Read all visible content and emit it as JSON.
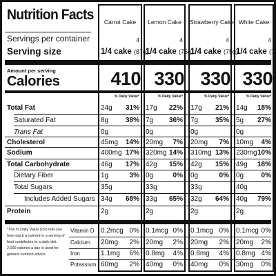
{
  "title": "Nutrition Facts",
  "servings_label": "Servings per container",
  "serving_size_label": "Serving size",
  "amount_per_serving": "Amount per serving",
  "calories_label": "Calories",
  "daily_value_header": "% Daily Value*",
  "products": [
    {
      "name": "Carrot Cake",
      "servings": "4",
      "serving_size": "1/4 cake",
      "grams": "(87g)",
      "calories": "410"
    },
    {
      "name": "Lemon Cake",
      "servings": "4",
      "serving_size": "1/4 cake",
      "grams": "(75g)",
      "calories": "330"
    },
    {
      "name": "Strawberry Cake",
      "servings": "4",
      "serving_size": "1/4 cake",
      "grams": "(75g)",
      "calories": "330"
    },
    {
      "name": "White Cake",
      "servings": "4",
      "serving_size": "1/4 cake",
      "grams": "(77g)",
      "calories": "330"
    }
  ],
  "nutrients": [
    {
      "label": "Total Fat",
      "values": [
        [
          "24g",
          "31%"
        ],
        [
          "17g",
          "22%"
        ],
        [
          "17g",
          "21%"
        ],
        [
          "14g",
          "18%"
        ]
      ]
    },
    {
      "label": "Saturated Fat",
      "values": [
        [
          "8g",
          "38%"
        ],
        [
          "7g",
          "36%"
        ],
        [
          "7g",
          "35%"
        ],
        [
          "5g",
          "27%"
        ]
      ]
    },
    {
      "label": "Trans Fat",
      "values": [
        [
          "0g",
          ""
        ],
        [
          "0g",
          ""
        ],
        [
          "0g",
          ""
        ],
        [
          "0g",
          ""
        ]
      ]
    },
    {
      "label": "Cholesterol",
      "values": [
        [
          "45mg",
          "14%"
        ],
        [
          "20mg",
          "7%"
        ],
        [
          "20mg",
          "7%"
        ],
        [
          "10mg",
          "4%"
        ]
      ]
    },
    {
      "label": "Sodium",
      "values": [
        [
          "400mg",
          "17%"
        ],
        [
          "320mg",
          "14%"
        ],
        [
          "310mg",
          "13%"
        ],
        [
          "230mg",
          "10%"
        ]
      ]
    },
    {
      "label": "Total Carbohydrate",
      "values": [
        [
          "46g",
          "17%"
        ],
        [
          "42g",
          "15%"
        ],
        [
          "42g",
          "15%"
        ],
        [
          "49g",
          "18%"
        ]
      ]
    },
    {
      "label": "Dietary Fiber",
      "values": [
        [
          "1g",
          "3%"
        ],
        [
          "0g",
          "0%"
        ],
        [
          "0g",
          "0%"
        ],
        [
          "0g",
          "0%"
        ]
      ]
    },
    {
      "label": "Total Sugars",
      "values": [
        [
          "35g",
          ""
        ],
        [
          "33g",
          ""
        ],
        [
          "33g",
          ""
        ],
        [
          "40g",
          ""
        ]
      ]
    },
    {
      "label": "Includes Added Sugars",
      "values": [
        [
          "34g",
          "68%"
        ],
        [
          "33g",
          "65%"
        ],
        [
          "32g",
          "64%"
        ],
        [
          "40g",
          "79%"
        ]
      ]
    },
    {
      "label": "Protein",
      "values": [
        [
          "2g",
          ""
        ],
        [
          "2g",
          ""
        ],
        [
          "2g",
          ""
        ],
        [
          "2g",
          ""
        ]
      ]
    }
  ],
  "footnote": "*The % Daily Value (DV) tells you how much a nutrient in a serving of food contributes to a daily diet. 2,000 calories a day is used for general nutrition advice.",
  "vitamins": [
    {
      "label": "Vitamin D",
      "values": [
        [
          "0.2mcg",
          "0%"
        ],
        [
          "0.1mcg",
          "0%"
        ],
        [
          "0.1mcg",
          "0%"
        ],
        [
          "0.1mcg",
          "0%"
        ]
      ]
    },
    {
      "label": "Calcium",
      "values": [
        [
          "20mg",
          "2%"
        ],
        [
          "20mg",
          "2%"
        ],
        [
          "20mg",
          "2%"
        ],
        [
          "20mg",
          "2%"
        ]
      ]
    },
    {
      "label": "Iron",
      "values": [
        [
          "1.1mg",
          "6%"
        ],
        [
          "0.8mg",
          "4%"
        ],
        [
          "0.8mg",
          "4%"
        ],
        [
          "0.8mg",
          "4%"
        ]
      ]
    },
    {
      "label": "Potassium",
      "values": [
        [
          "60mg",
          "2%"
        ],
        [
          "40mg",
          "0%"
        ],
        [
          "40mg",
          "0%"
        ],
        [
          "30mg",
          "0%"
        ]
      ]
    }
  ]
}
